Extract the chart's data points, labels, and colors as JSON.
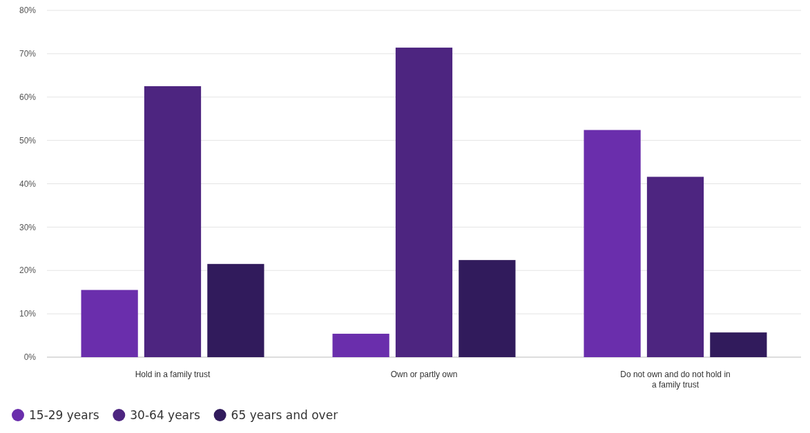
{
  "chart_data": {
    "type": "bar",
    "categories": [
      "Hold in a family trust",
      "Own or partly own",
      "Do not own and do not hold in a family trust"
    ],
    "series": [
      {
        "name": "15-29 years",
        "color": "#6a2eac",
        "values": [
          15.5,
          5.4,
          52.4
        ]
      },
      {
        "name": "30-64 years",
        "color": "#4d2580",
        "values": [
          62.5,
          71.4,
          41.6
        ]
      },
      {
        "name": "65 years and over",
        "color": "#311b5c",
        "values": [
          21.5,
          22.4,
          5.7
        ]
      }
    ],
    "ylim": [
      0,
      80
    ],
    "yticks": [
      {
        "value": 0,
        "label": "0%"
      },
      {
        "value": 10,
        "label": "10%"
      },
      {
        "value": 20,
        "label": "20%"
      },
      {
        "value": 30,
        "label": "30%"
      },
      {
        "value": 40,
        "label": "40%"
      },
      {
        "value": 50,
        "label": "50%"
      },
      {
        "value": 60,
        "label": "60%"
      },
      {
        "value": 70,
        "label": "70%"
      },
      {
        "value": 80,
        "label": "80%"
      }
    ],
    "grid": "y",
    "legend": "bottom left",
    "marker": "circle"
  }
}
